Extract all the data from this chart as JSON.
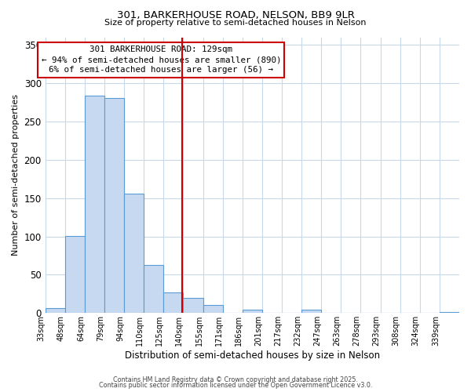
{
  "title1": "301, BARKERHOUSE ROAD, NELSON, BB9 9LR",
  "title2": "Size of property relative to semi-detached houses in Nelson",
  "xlabel": "Distribution of semi-detached houses by size in Nelson",
  "ylabel": "Number of semi-detached properties",
  "bin_labels": [
    "33sqm",
    "48sqm",
    "64sqm",
    "79sqm",
    "94sqm",
    "110sqm",
    "125sqm",
    "140sqm",
    "155sqm",
    "171sqm",
    "186sqm",
    "201sqm",
    "217sqm",
    "232sqm",
    "247sqm",
    "263sqm",
    "278sqm",
    "293sqm",
    "308sqm",
    "324sqm",
    "339sqm"
  ],
  "bar_heights": [
    6,
    101,
    284,
    281,
    156,
    63,
    27,
    20,
    11,
    0,
    4,
    0,
    0,
    4,
    0,
    0,
    0,
    0,
    0,
    0,
    1
  ],
  "bar_color": "#c6d9f0",
  "bar_edge_color": "#5b9bd5",
  "vline_index": 6.93,
  "vline_color": "#cc0000",
  "annotation_title": "301 BARKERHOUSE ROAD: 129sqm",
  "annotation_line1": "← 94% of semi-detached houses are smaller (890)",
  "annotation_line2": "6% of semi-detached houses are larger (56) →",
  "annotation_box_color": "#ffffff",
  "annotation_box_edge": "#cc0000",
  "ylim": [
    0,
    360
  ],
  "yticks": [
    0,
    50,
    100,
    150,
    200,
    250,
    300,
    350
  ],
  "footer1": "Contains HM Land Registry data © Crown copyright and database right 2025.",
  "footer2": "Contains public sector information licensed under the Open Government Licence v3.0.",
  "background_color": "#ffffff",
  "grid_color": "#c8d8e8"
}
